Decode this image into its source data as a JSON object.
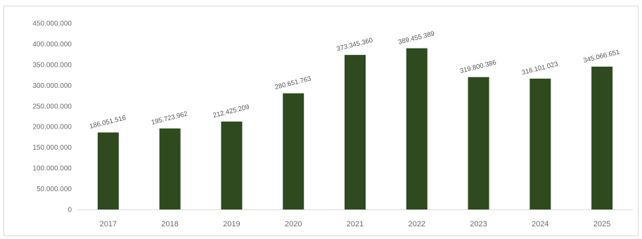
{
  "chart_data": {
    "type": "bar",
    "title": "",
    "xlabel": "",
    "ylabel": "",
    "categories": [
      "2017",
      "2018",
      "2019",
      "2020",
      "2021",
      "2022",
      "2023",
      "2024",
      "2025"
    ],
    "values": [
      186051516,
      195723962,
      212425209,
      280651763,
      373345360,
      389455389,
      319800386,
      316101023,
      345066651
    ],
    "value_labels": [
      "186.051.516",
      "195.723.962",
      "212.425.209",
      "280.651.763",
      "373.345.360",
      "389.455.389",
      "319.800.386",
      "316.101.023",
      "345.066.651"
    ],
    "ylim": [
      0,
      450000000
    ],
    "yticks": [
      0,
      50000000,
      100000000,
      150000000,
      200000000,
      250000000,
      300000000,
      350000000,
      400000000,
      450000000
    ],
    "ytick_labels": [
      "0",
      "50.000.000",
      "100.000.000",
      "150.000.000",
      "200.000.000",
      "250.000.000",
      "300.000.000",
      "350.000.000",
      "400.000.000",
      "450.000.000"
    ],
    "grid": false,
    "legend": "none",
    "bar_color": "#2e4a1e",
    "axis_color": "#d9d9d9"
  }
}
